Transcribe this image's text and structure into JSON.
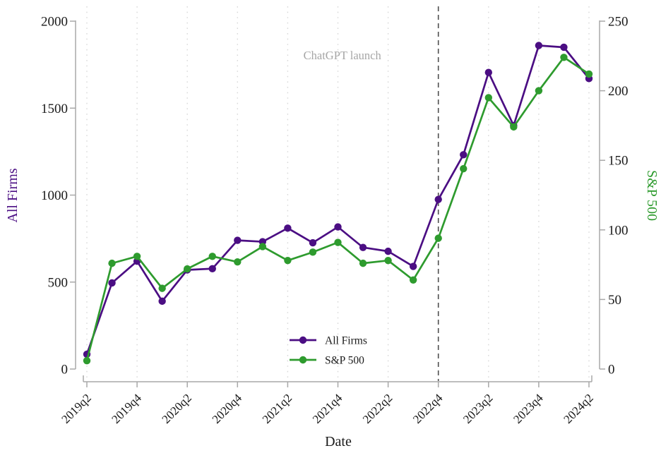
{
  "figure": {
    "xlabel": "Date",
    "left_axis_title": "All Firms",
    "right_axis_title": "S&P 500",
    "annotation_label": "ChatGPT launch"
  },
  "colors": {
    "all_firms": "#4b0e83",
    "sp500": "#2e9b2e",
    "annotation_gray": "#a6a6a6",
    "axis_gray": "#a8a8a8",
    "event_line_gray": "#4f4f4f",
    "gridline_gray": "#d8d8d8",
    "tick_text": "#1a1a1a"
  },
  "chart_data": {
    "type": "line",
    "x": [
      "2019q2",
      "2019q3",
      "2019q4",
      "2020q1",
      "2020q2",
      "2020q3",
      "2020q4",
      "2021q1",
      "2021q2",
      "2021q3",
      "2021q4",
      "2022q1",
      "2022q2",
      "2022q3",
      "2022q4",
      "2023q1",
      "2023q2",
      "2023q3",
      "2023q4",
      "2024q1",
      "2024q2"
    ],
    "x_labeled_ticks": [
      "2019q2",
      "2019q4",
      "2020q2",
      "2020q4",
      "2021q2",
      "2021q4",
      "2022q2",
      "2022q4",
      "2023q2",
      "2023q4",
      "2024q2"
    ],
    "series": [
      {
        "name": "All Firms",
        "axis": "left",
        "color": "#4b0e83",
        "values": [
          85,
          495,
          620,
          390,
          570,
          577,
          740,
          732,
          810,
          726,
          817,
          699,
          677,
          590,
          975,
          1232,
          1705,
          1400,
          1860,
          1850,
          1670
        ]
      },
      {
        "name": "S&P 500",
        "axis": "right",
        "color": "#2e9b2e",
        "values": [
          6,
          76,
          81,
          58,
          72,
          81,
          77,
          88,
          78,
          84,
          91,
          76,
          78,
          64,
          94,
          144,
          195,
          174,
          200,
          224,
          212
        ]
      }
    ],
    "left_ylim": [
      0,
      2000
    ],
    "right_ylim": [
      0,
      250
    ],
    "left_ticks": [
      0,
      500,
      1000,
      1500,
      2000
    ],
    "right_ticks": [
      0,
      50,
      100,
      150,
      200,
      250
    ],
    "xlabel": "Date",
    "left_axis_title": "All Firms",
    "right_axis_title": "S&P 500",
    "grid": "vertical-dotted-at-labeled-ticks",
    "legend_position": "inside-bottom-center",
    "legend": [
      "All Firms",
      "S&P 500"
    ],
    "event_line": {
      "x": "2022q4",
      "label": "ChatGPT launch",
      "style": "dashed"
    }
  }
}
